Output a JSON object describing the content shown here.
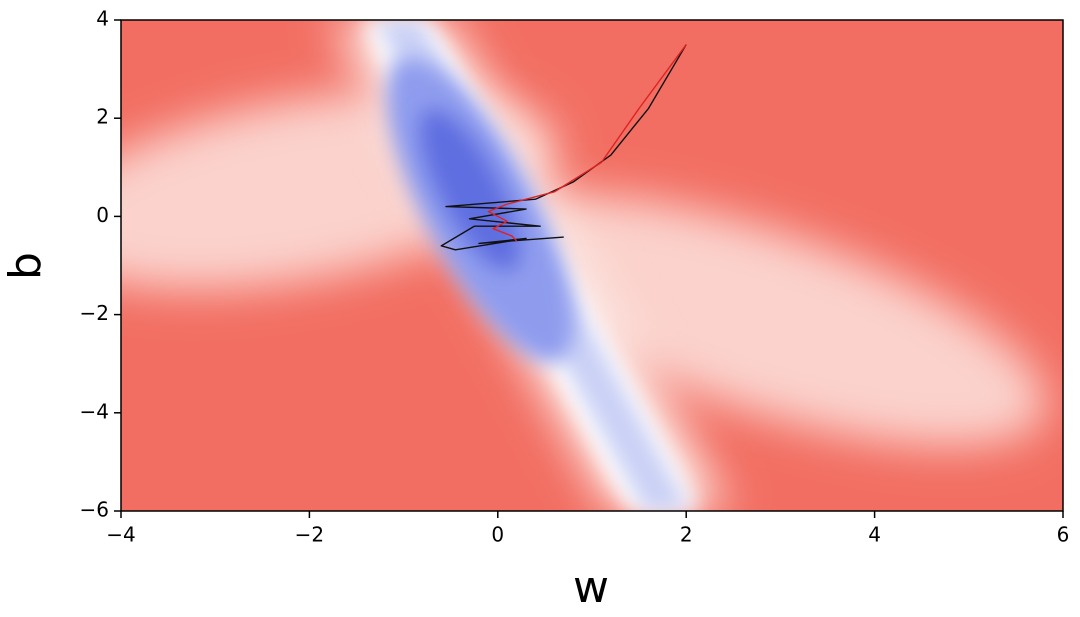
{
  "chart_data": {
    "type": "contour",
    "xlabel": "w",
    "ylabel": "b",
    "xlim": [
      -4,
      6
    ],
    "ylim": [
      -6,
      4
    ],
    "xticks": [
      {
        "value": -4,
        "label": "−4"
      },
      {
        "value": -2,
        "label": "−2"
      },
      0,
      2,
      4,
      6
    ],
    "yticks": [
      {
        "value": -6,
        "label": "−6"
      },
      {
        "value": -4,
        "label": "−4"
      },
      {
        "value": -2,
        "label": "−2"
      },
      0,
      2,
      4
    ],
    "series": [
      {
        "color": "#111111",
        "x": [
          2.0,
          1.6,
          1.2,
          0.8,
          0.4,
          -0.55,
          0.3,
          -0.3,
          0.45,
          -0.25,
          -0.6,
          -0.45,
          0.3,
          -0.2,
          0.7
        ],
        "y": [
          3.5,
          2.2,
          1.25,
          0.7,
          0.35,
          0.2,
          0.15,
          -0.05,
          -0.2,
          -0.2,
          -0.6,
          -0.68,
          -0.45,
          -0.55,
          -0.42
        ]
      },
      {
        "color": "#dd2222",
        "x": [
          2.0,
          1.5,
          1.1,
          0.6,
          0.1,
          -0.1,
          0.1,
          -0.05,
          0.15,
          0.2
        ],
        "y": [
          3.5,
          2.2,
          1.1,
          0.5,
          0.25,
          0.1,
          -0.1,
          -0.25,
          -0.4,
          -0.5
        ]
      }
    ]
  }
}
